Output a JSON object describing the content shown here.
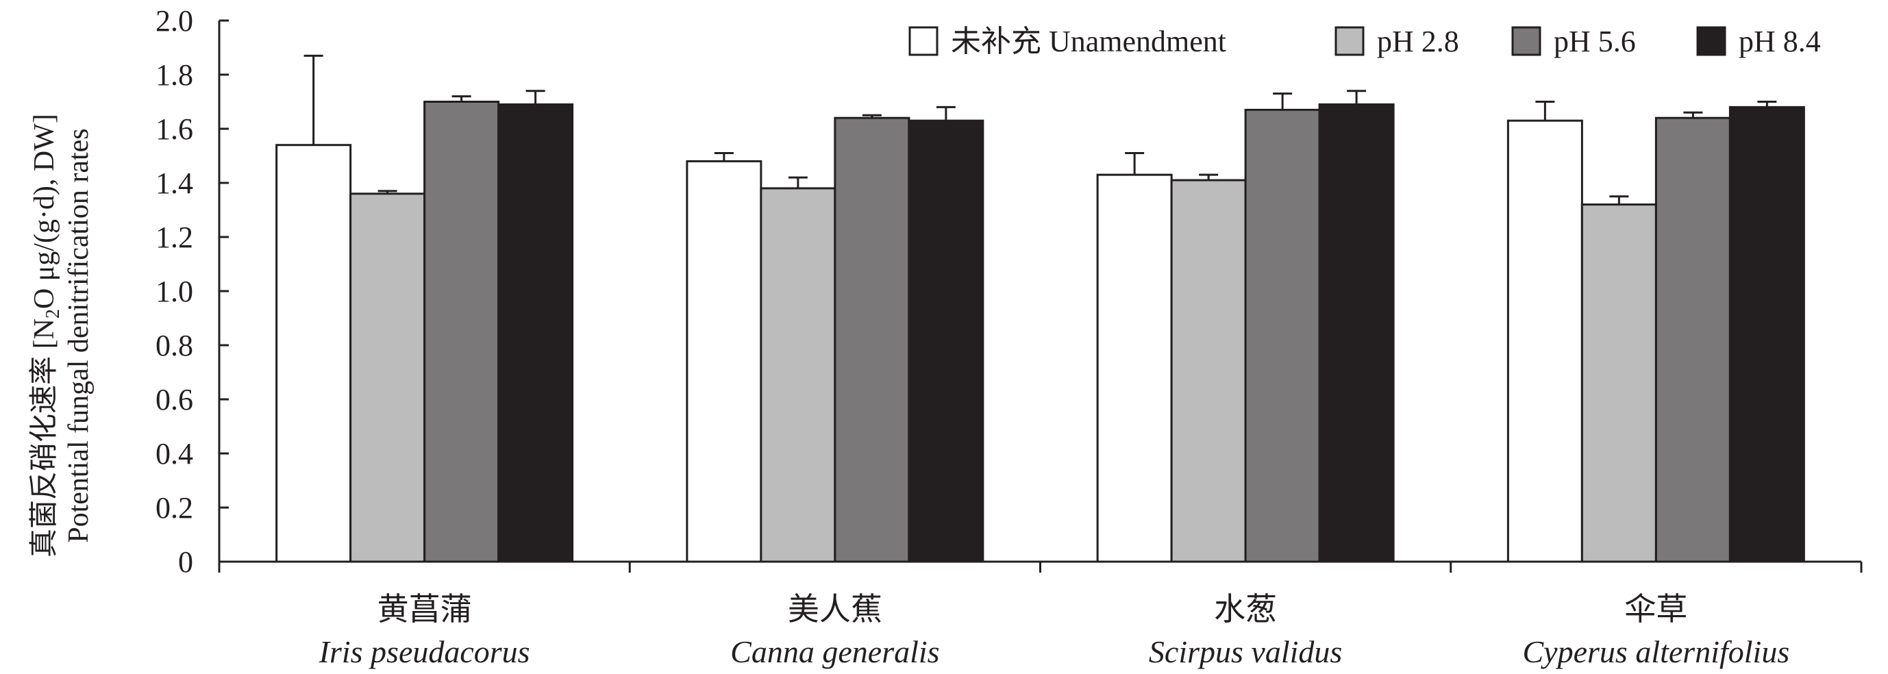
{
  "chart_data": {
    "type": "bar",
    "ylabel_line1": "真菌反硝化速率 [N",
    "ylabel_sub": "2",
    "ylabel_line1_tail": "O μg/(g·d), DW]",
    "ylabel_line2": "Potential fungal denitrification rates",
    "ylim": [
      0,
      2.0
    ],
    "yticks": [
      "0",
      "0.2",
      "0.4",
      "0.6",
      "0.8",
      "1.0",
      "1.2",
      "1.4",
      "1.6",
      "1.8",
      "2.0"
    ],
    "ytick_values": [
      0,
      0.2,
      0.4,
      0.6,
      0.8,
      1.0,
      1.2,
      1.4,
      1.6,
      1.8,
      2.0
    ],
    "categories": [
      {
        "zh": "黄菖蒲",
        "en": "Iris pseudacorus"
      },
      {
        "zh": "美人蕉",
        "en": "Canna generalis"
      },
      {
        "zh": "水葱",
        "en": "Scirpus validus"
      },
      {
        "zh": "伞草",
        "en": "Cyperus alternifolius"
      }
    ],
    "series": [
      {
        "name": "未补充 Unamendment",
        "color": "#ffffff",
        "values": [
          1.54,
          1.48,
          1.43,
          1.63
        ],
        "errors": [
          0.33,
          0.03,
          0.08,
          0.07
        ]
      },
      {
        "name": "pH 2.8",
        "color": "#bcbcbc",
        "values": [
          1.36,
          1.38,
          1.41,
          1.32
        ],
        "errors": [
          0.01,
          0.04,
          0.02,
          0.03
        ]
      },
      {
        "name": "pH 5.6",
        "color": "#7a7879",
        "values": [
          1.7,
          1.64,
          1.67,
          1.64
        ],
        "errors": [
          0.02,
          0.01,
          0.06,
          0.02
        ]
      },
      {
        "name": "pH 8.4",
        "color": "#231f20",
        "values": [
          1.69,
          1.63,
          1.69,
          1.68
        ],
        "errors": [
          0.05,
          0.05,
          0.05,
          0.02
        ]
      }
    ],
    "legend_position": "top-right",
    "grid": false
  }
}
